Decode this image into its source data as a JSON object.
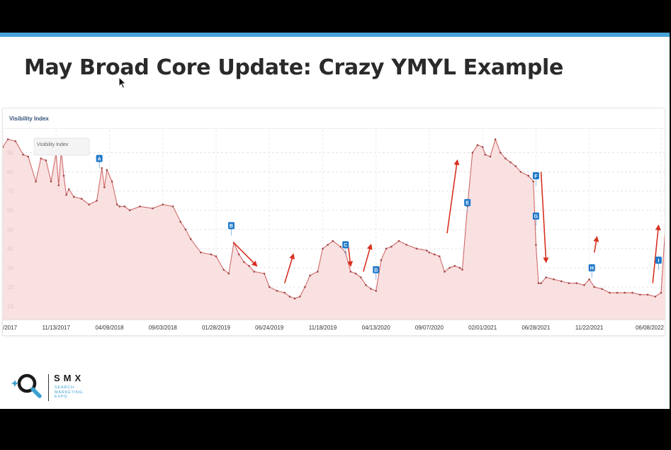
{
  "slide": {
    "title": "May Broad Core Update: Crazy YMYL Example",
    "accent_color": "#4aa3d8"
  },
  "chart_title": "Visibility Index",
  "tooltip_label": "Visibility Index",
  "logo": {
    "icon": "magnifier-sparkle-icon",
    "brand": "SMX",
    "sub_lines": [
      "SEARCH",
      "MARKETING",
      "EXPO"
    ]
  },
  "colors": {
    "line": "#d06a6a",
    "area": "#f8dcdc",
    "marker": "#1f78c8",
    "arrow": "#d83020"
  },
  "chart_data": {
    "type": "area",
    "title": "Visibility Index",
    "xlabel": "",
    "ylabel": "",
    "ylim": [
      3,
      102
    ],
    "y_ticks": [
      10,
      20,
      30,
      40,
      50,
      60,
      70,
      80,
      90
    ],
    "grid": true,
    "x_tick_labels": [
      "/2017",
      "11/13/2017",
      "04/09/2018",
      "09/03/2018",
      "01/28/2019",
      "06/24/2019",
      "11/18/2019",
      "04/13/2020",
      "09/07/2020",
      "02/01/2021",
      "06/28/2021",
      "11/22/2021",
      "06/08/2022"
    ],
    "x_tick_dates": [
      "2017-06-19",
      "2017-11-13",
      "2018-04-09",
      "2018-09-03",
      "2019-01-28",
      "2019-06-24",
      "2019-11-18",
      "2020-04-13",
      "2020-09-07",
      "2021-02-01",
      "2021-06-28",
      "2021-11-22",
      "2022-06-08"
    ],
    "series": [
      {
        "dates": [
          "2017-06-19",
          "2017-07-03",
          "2017-07-24",
          "2017-08-14",
          "2017-08-28",
          "2017-09-18",
          "2017-10-02",
          "2017-10-16",
          "2017-10-30",
          "2017-11-13",
          "2017-11-20",
          "2017-11-27",
          "2017-12-04",
          "2017-12-11",
          "2017-12-18",
          "2018-01-01",
          "2018-01-22",
          "2018-02-12",
          "2018-03-05",
          "2018-03-19",
          "2018-03-26",
          "2018-04-02",
          "2018-04-16",
          "2018-04-30",
          "2018-05-07",
          "2018-05-21",
          "2018-06-04",
          "2018-07-02",
          "2018-08-06",
          "2018-09-03",
          "2018-10-01",
          "2018-10-22",
          "2018-11-05",
          "2018-11-19",
          "2018-12-17",
          "2019-01-14",
          "2019-01-28",
          "2019-02-18",
          "2019-03-04",
          "2019-03-18",
          "2019-04-01",
          "2019-04-15",
          "2019-04-29",
          "2019-05-13",
          "2019-06-10",
          "2019-06-24",
          "2019-07-15",
          "2019-08-05",
          "2019-08-19",
          "2019-09-02",
          "2019-09-16",
          "2019-09-30",
          "2019-10-14",
          "2019-11-04",
          "2019-11-18",
          "2019-12-02",
          "2019-12-16",
          "2020-01-06",
          "2020-01-20",
          "2020-02-03",
          "2020-02-17",
          "2020-03-02",
          "2020-03-16",
          "2020-03-30",
          "2020-04-13",
          "2020-04-27",
          "2020-05-11",
          "2020-05-25",
          "2020-06-15",
          "2020-07-06",
          "2020-08-03",
          "2020-08-31",
          "2020-09-07",
          "2020-09-21",
          "2020-10-05",
          "2020-10-19",
          "2020-11-02",
          "2020-11-16",
          "2020-11-30",
          "2020-12-07",
          "2020-12-21",
          "2021-01-04",
          "2021-01-18",
          "2021-02-01",
          "2021-02-08",
          "2021-02-22",
          "2021-03-08",
          "2021-03-22",
          "2021-04-05",
          "2021-04-19",
          "2021-05-03",
          "2021-05-17",
          "2021-06-07",
          "2021-06-21",
          "2021-06-28",
          "2021-07-05",
          "2021-07-12",
          "2021-07-26",
          "2021-08-16",
          "2021-09-06",
          "2021-09-27",
          "2021-10-18",
          "2021-11-08",
          "2021-11-22",
          "2021-12-06",
          "2021-12-27",
          "2022-01-17",
          "2022-02-07",
          "2022-02-28",
          "2022-03-21",
          "2022-04-11",
          "2022-05-02",
          "2022-05-23",
          "2022-06-08",
          "2022-06-20"
        ],
        "values": [
          93,
          97,
          96,
          89,
          88,
          75,
          87,
          86,
          75,
          90,
          73,
          91,
          78,
          68,
          71,
          67,
          66,
          63,
          65,
          82,
          72,
          81,
          75,
          63,
          62,
          62,
          60,
          62,
          61,
          63,
          62,
          54,
          50,
          45,
          38,
          37,
          36,
          29,
          27,
          43,
          37,
          33,
          31,
          28,
          27,
          20,
          18,
          17,
          15,
          14,
          15,
          20,
          26,
          28,
          40,
          42,
          44,
          41,
          38,
          28,
          27,
          25,
          21,
          19,
          18,
          34,
          40,
          41,
          44,
          42,
          40,
          39,
          38,
          37,
          36,
          28,
          30,
          31,
          30,
          29,
          62,
          90,
          94,
          93,
          89,
          88,
          97,
          90,
          87,
          85,
          83,
          80,
          78,
          75,
          42,
          22,
          22,
          25,
          24,
          23,
          22,
          22,
          21,
          24,
          20,
          19,
          17,
          17,
          17,
          17,
          16,
          16,
          15,
          17,
          52
        ]
      }
    ],
    "markers": [
      {
        "label": "A",
        "date": "2018-03-12",
        "value": 87
      },
      {
        "label": "B",
        "date": "2019-03-11",
        "value": 52
      },
      {
        "label": "C",
        "date": "2020-01-20",
        "value": 42
      },
      {
        "label": "D",
        "date": "2020-04-13",
        "value": 29
      },
      {
        "label": "E",
        "date": "2020-12-21",
        "value": 64
      },
      {
        "label": "F",
        "date": "2021-06-28",
        "value": 78
      },
      {
        "label": "G",
        "date": "2021-06-28",
        "value": 57
      },
      {
        "label": "H",
        "date": "2021-11-29",
        "value": 30
      },
      {
        "label": "I",
        "date": "2022-06-01",
        "value": 34
      }
    ],
    "arrows": [
      {
        "direction": "down",
        "from_date": "2019-03-18",
        "to_date": "2019-05-20",
        "from_value": 43,
        "to_value": 31
      },
      {
        "direction": "up",
        "from_date": "2019-08-05",
        "to_date": "2019-08-29",
        "from_value": 22,
        "to_value": 37
      },
      {
        "direction": "down",
        "from_date": "2020-01-27",
        "to_date": "2020-02-03",
        "from_value": 42,
        "to_value": 31
      },
      {
        "direction": "up",
        "from_date": "2020-03-09",
        "to_date": "2020-03-30",
        "from_value": 28,
        "to_value": 42
      },
      {
        "direction": "up",
        "from_date": "2020-10-26",
        "to_date": "2020-11-23",
        "from_value": 48,
        "to_value": 86
      },
      {
        "direction": "down",
        "from_date": "2021-07-12",
        "to_date": "2021-07-26",
        "from_value": 80,
        "to_value": 33
      },
      {
        "direction": "up",
        "from_date": "2021-12-06",
        "to_date": "2021-12-13",
        "from_value": 38,
        "to_value": 46
      },
      {
        "direction": "up",
        "from_date": "2022-05-16",
        "to_date": "2022-06-01",
        "from_value": 22,
        "to_value": 52
      }
    ]
  }
}
